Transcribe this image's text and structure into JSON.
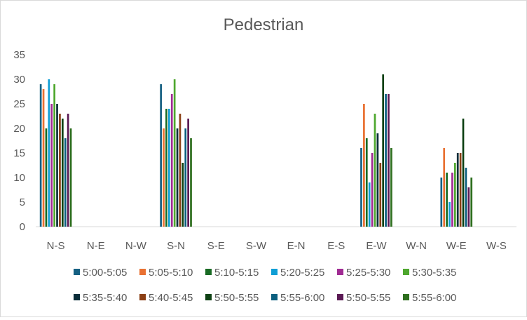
{
  "chart_data": {
    "type": "bar",
    "title": "Pedestrian",
    "xlabel": "",
    "ylabel": "",
    "ylim": [
      0,
      35
    ],
    "yticks": [
      0,
      5,
      10,
      15,
      20,
      25,
      30,
      35
    ],
    "grid": false,
    "legend_position": "bottom",
    "categories": [
      "N-S",
      "N-E",
      "N-W",
      "S-N",
      "S-E",
      "S-W",
      "E-N",
      "E-S",
      "E-W",
      "W-N",
      "W-E",
      "W-S"
    ],
    "series": [
      {
        "name": "5:00-5:05",
        "color": "#156082",
        "values": [
          29,
          0,
          0,
          29,
          0,
          0,
          0,
          0,
          16,
          0,
          10,
          0
        ]
      },
      {
        "name": "5:05-5:10",
        "color": "#e97132",
        "values": [
          28,
          0,
          0,
          20,
          0,
          0,
          0,
          0,
          25,
          0,
          16,
          0
        ]
      },
      {
        "name": "5:10-5:15",
        "color": "#196b24",
        "values": [
          20,
          0,
          0,
          24,
          0,
          0,
          0,
          0,
          18,
          0,
          11,
          0
        ]
      },
      {
        "name": "5:20-5:25",
        "color": "#0f9ed5",
        "values": [
          30,
          0,
          0,
          24,
          0,
          0,
          0,
          0,
          9,
          0,
          5,
          0
        ]
      },
      {
        "name": "5:25-5:30",
        "color": "#a02b93",
        "values": [
          25,
          0,
          0,
          27,
          0,
          0,
          0,
          0,
          15,
          0,
          11,
          0
        ]
      },
      {
        "name": "5:30-5:35",
        "color": "#4ea72e",
        "values": [
          29,
          0,
          0,
          30,
          0,
          0,
          0,
          0,
          23,
          0,
          13,
          0
        ]
      },
      {
        "name": "5:35-5:40",
        "color": "#0b2d39",
        "values": [
          25,
          0,
          0,
          20,
          0,
          0,
          0,
          0,
          19,
          0,
          15,
          0
        ]
      },
      {
        "name": "5:40-5:45",
        "color": "#8b3f14",
        "values": [
          23,
          0,
          0,
          23,
          0,
          0,
          0,
          0,
          13,
          0,
          15,
          0
        ]
      },
      {
        "name": "5:50-5:55",
        "color": "#0e4114",
        "values": [
          22,
          0,
          0,
          13,
          0,
          0,
          0,
          0,
          31,
          0,
          22,
          0
        ]
      },
      {
        "name": "5:55-6:00",
        "color": "#0b5f7f",
        "values": [
          18,
          0,
          0,
          20,
          0,
          0,
          0,
          0,
          27,
          0,
          12,
          0
        ]
      },
      {
        "name": "5:50-5:55",
        "color": "#5a1a54",
        "values": [
          23,
          0,
          0,
          22,
          0,
          0,
          0,
          0,
          27,
          0,
          8,
          0
        ]
      },
      {
        "name": "5:55-6:00",
        "color": "#2d6e1e",
        "values": [
          20,
          0,
          0,
          18,
          0,
          0,
          0,
          0,
          16,
          0,
          10,
          0
        ]
      }
    ]
  }
}
